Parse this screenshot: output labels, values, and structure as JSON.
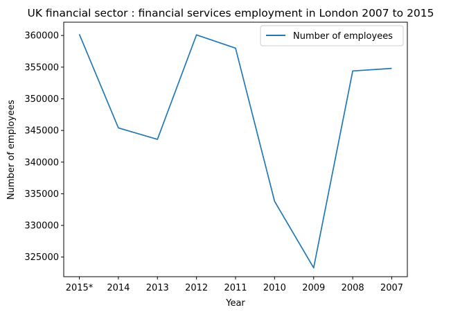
{
  "chart_data": {
    "type": "line",
    "title": "UK financial sector : financial services employment in London 2007 to 2015",
    "xlabel": "Year",
    "ylabel": "Number of employees",
    "categories": [
      "2015*",
      "2014",
      "2013",
      "2012",
      "2011",
      "2010",
      "2009",
      "2008",
      "2007"
    ],
    "series": [
      {
        "name": "Number of employees",
        "color": "#1f77b4",
        "values": [
          360200,
          345400,
          343600,
          360100,
          358000,
          333800,
          323300,
          354400,
          354800
        ]
      }
    ],
    "yticks": [
      325000,
      330000,
      335000,
      340000,
      345000,
      350000,
      355000,
      360000
    ],
    "ylim": [
      321900,
      362100
    ],
    "grid": false,
    "legend": "top-right"
  }
}
